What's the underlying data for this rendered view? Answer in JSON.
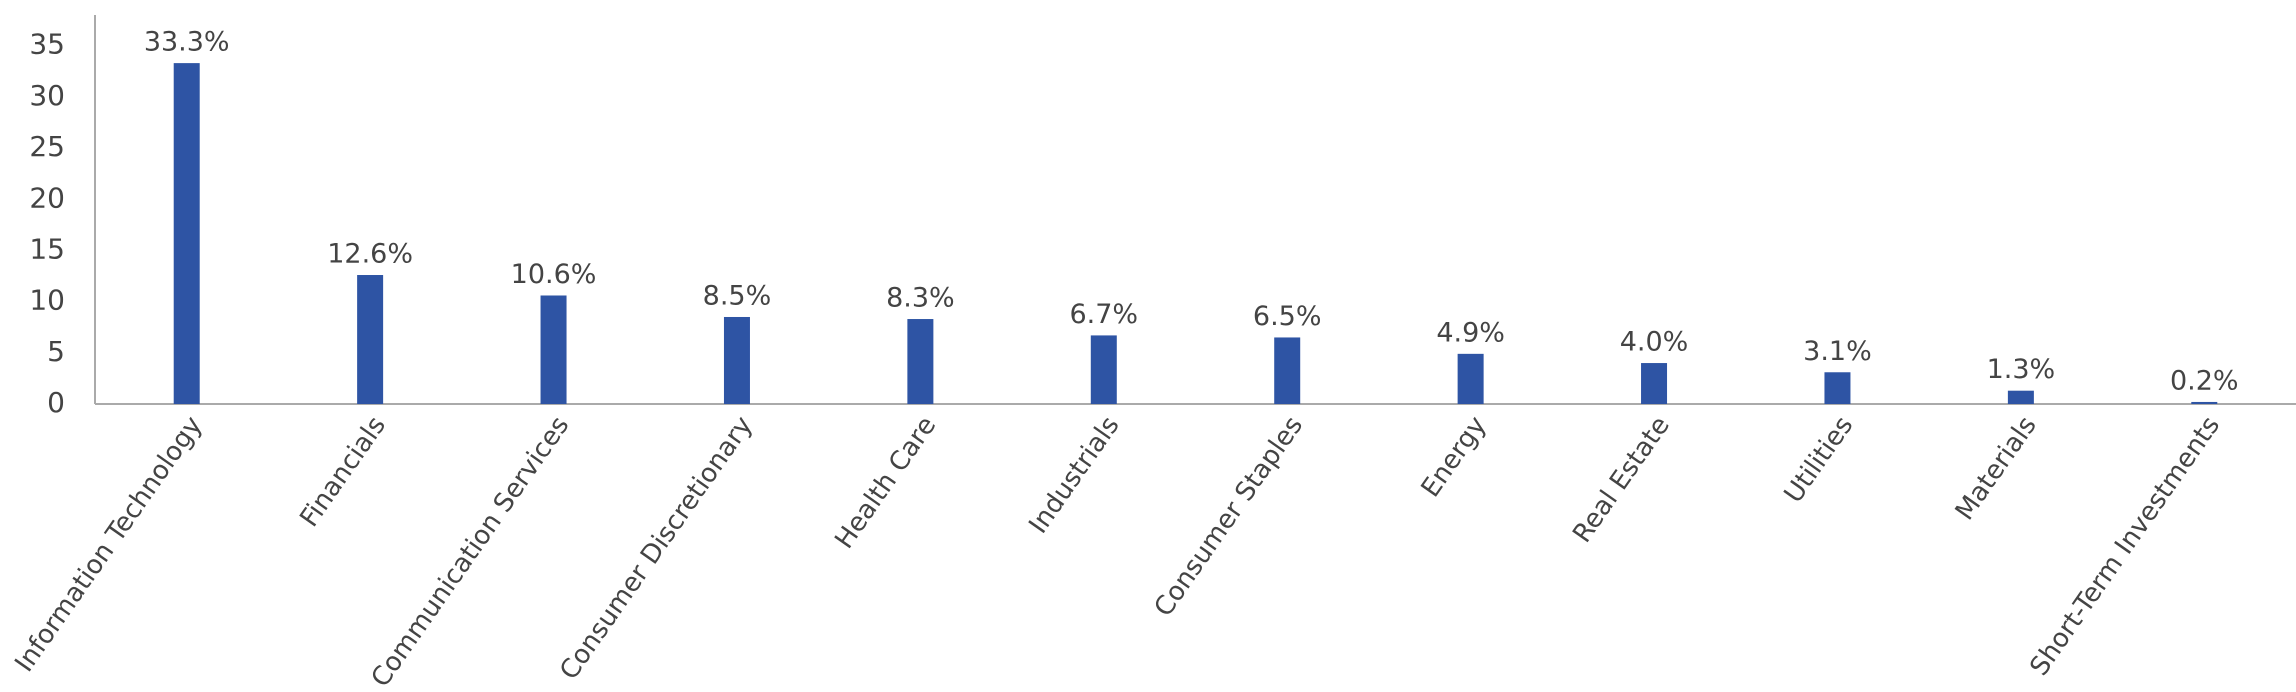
{
  "chart_data": {
    "type": "bar",
    "categories": [
      "Information Technology",
      "Financials",
      "Communication Services",
      "Consumer Discretionary",
      "Health Care",
      "Industrials",
      "Consumer Staples",
      "Energy",
      "Real Estate",
      "Utilities",
      "Materials",
      "Short-Term Investments"
    ],
    "values": [
      33.3,
      12.6,
      10.6,
      8.5,
      8.3,
      6.7,
      6.5,
      4.9,
      4.0,
      3.1,
      1.3,
      0.2
    ],
    "value_labels": [
      "33.3%",
      "12.6%",
      "10.6%",
      "8.5%",
      "8.3%",
      "6.7%",
      "6.5%",
      "4.9%",
      "4.0%",
      "3.1%",
      "1.3%",
      "0.2%"
    ],
    "color": "#2e54a4",
    "ylim": [
      0,
      38
    ],
    "yticks": [
      0,
      5,
      10,
      15,
      20,
      25,
      30,
      35
    ],
    "grid": false
  }
}
